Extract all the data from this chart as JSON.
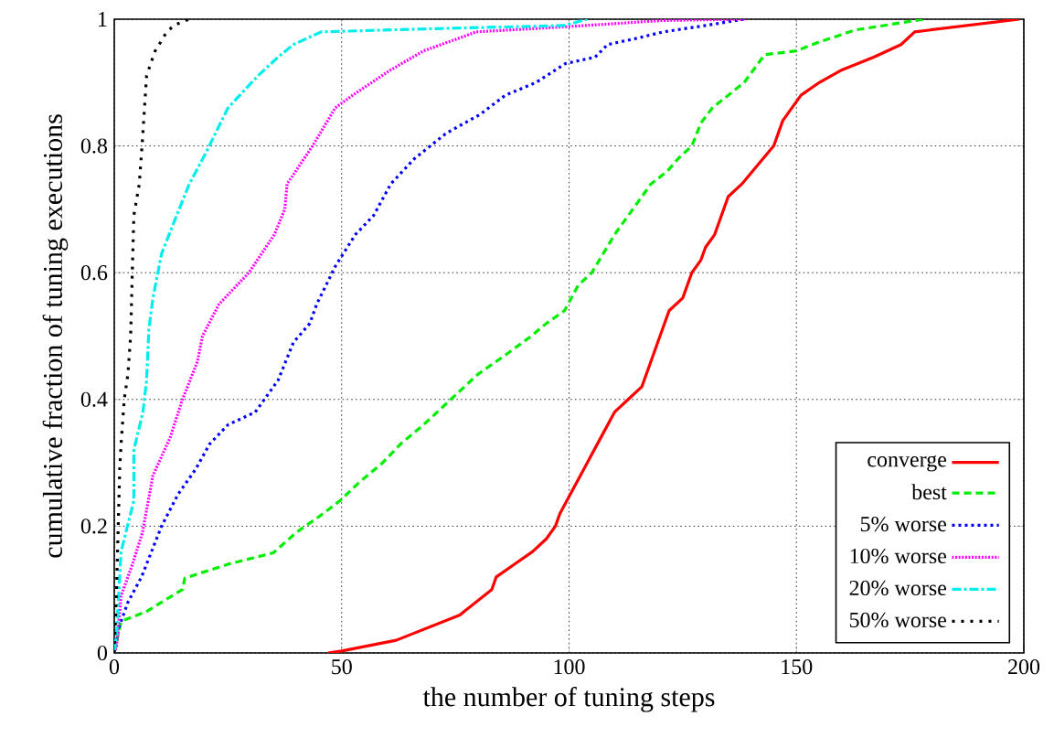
{
  "chart_data": {
    "type": "line",
    "xlabel": "the number of tuning steps",
    "ylabel": "cumulative fraction of tuning executions",
    "xlim": [
      0,
      200
    ],
    "ylim": [
      0,
      1
    ],
    "xticks": [
      0,
      50,
      100,
      150,
      200
    ],
    "yticks": [
      0,
      0.2,
      0.4,
      0.6,
      0.8,
      1
    ],
    "grid": true,
    "legend": "bottom right",
    "marker": "none",
    "series": [
      {
        "name": "converge",
        "color": "#ff0000",
        "line_style": "solid",
        "x": [
          47,
          50,
          62,
          76,
          83,
          84,
          88,
          92,
          95,
          97,
          98,
          107,
          110,
          113,
          116,
          122,
          125,
          127,
          129,
          130,
          132,
          133,
          134,
          135,
          138,
          145,
          147,
          151,
          155,
          160,
          167,
          173,
          176,
          199
        ],
        "values": [
          0,
          0.003,
          0.02,
          0.06,
          0.1,
          0.12,
          0.14,
          0.16,
          0.18,
          0.2,
          0.22,
          0.34,
          0.38,
          0.4,
          0.42,
          0.54,
          0.56,
          0.6,
          0.62,
          0.64,
          0.66,
          0.68,
          0.7,
          0.72,
          0.74,
          0.8,
          0.84,
          0.88,
          0.9,
          0.92,
          0.94,
          0.96,
          0.98,
          1.0
        ]
      },
      {
        "name": "best",
        "color": "#00ee00",
        "line_style": "dashed",
        "x": [
          0,
          1.5,
          7,
          10.4,
          15,
          15.5,
          25,
          35,
          40,
          45,
          49.6,
          54,
          59,
          63,
          68,
          74,
          80,
          86,
          91.7,
          95,
          99,
          102,
          105,
          110,
          114,
          118,
          121.6,
          124,
          127,
          129,
          131.5,
          135,
          138.5,
          143,
          150,
          155,
          163,
          178
        ],
        "values": [
          0,
          0.05,
          0.065,
          0.08,
          0.1,
          0.118,
          0.14,
          0.158,
          0.19,
          0.215,
          0.24,
          0.27,
          0.3,
          0.33,
          0.36,
          0.4,
          0.44,
          0.47,
          0.5,
          0.52,
          0.54,
          0.58,
          0.6,
          0.66,
          0.7,
          0.74,
          0.76,
          0.78,
          0.8,
          0.836,
          0.86,
          0.88,
          0.9,
          0.944,
          0.95,
          0.964,
          0.983,
          1.0
        ]
      },
      {
        "name": "5% worse",
        "color": "#0000ff",
        "line_style": "dotted",
        "x": [
          0,
          1,
          3,
          6,
          10.4,
          14,
          17.9,
          21,
          25,
          31,
          36,
          39.4,
          43,
          44.5,
          48.6,
          53,
          57,
          60.8,
          66,
          73,
          80.5,
          86,
          92.7,
          99.2,
          105.7,
          108.5,
          115,
          120.7,
          130,
          138.5
        ],
        "values": [
          0,
          0.04,
          0.08,
          0.12,
          0.2,
          0.25,
          0.29,
          0.33,
          0.36,
          0.38,
          0.43,
          0.49,
          0.52,
          0.55,
          0.61,
          0.66,
          0.69,
          0.74,
          0.78,
          0.82,
          0.85,
          0.88,
          0.9,
          0.93,
          0.94,
          0.96,
          0.97,
          0.98,
          0.99,
          1.0
        ]
      },
      {
        "name": "10% worse",
        "color": "#ff00ff",
        "line_style": "dotted",
        "x": [
          0,
          0.5,
          1.5,
          4,
          6.2,
          8.5,
          12.3,
          15,
          18.3,
          19.4,
          23,
          29.6,
          35.2,
          37.5,
          38,
          43.6,
          48.6,
          52.4,
          60.8,
          68,
          75.8,
          79.6,
          99.2,
          120.7,
          139
        ],
        "values": [
          0,
          0.01,
          0.09,
          0.14,
          0.19,
          0.28,
          0.34,
          0.4,
          0.46,
          0.5,
          0.55,
          0.6,
          0.66,
          0.7,
          0.74,
          0.8,
          0.86,
          0.88,
          0.92,
          0.95,
          0.97,
          0.98,
          0.988,
          0.998,
          1.0
        ]
      },
      {
        "name": "20% worse",
        "color": "#00eeee",
        "line_style": "dashdot",
        "x": [
          0,
          0.5,
          1.5,
          4.3,
          4.3,
          6.3,
          7.1,
          7.6,
          8.5,
          10.4,
          13.7,
          16.5,
          20.2,
          25,
          31.5,
          36,
          39.4,
          45.5,
          70,
          99,
          104
        ],
        "values": [
          0,
          0.03,
          0.16,
          0.24,
          0.32,
          0.38,
          0.43,
          0.51,
          0.56,
          0.63,
          0.69,
          0.74,
          0.79,
          0.86,
          0.91,
          0.94,
          0.96,
          0.98,
          0.985,
          0.99,
          1.0
        ]
      },
      {
        "name": "50% worse",
        "color": "#000000",
        "line_style": "dotted",
        "x": [
          0,
          0.5,
          1.2,
          1.5,
          2.2,
          3,
          3.6,
          4,
          4.3,
          5.5,
          6.2,
          7.1,
          8,
          9,
          11.3,
          13,
          16.5
        ],
        "values": [
          0,
          0.1,
          0.29,
          0.33,
          0.4,
          0.44,
          0.5,
          0.61,
          0.69,
          0.74,
          0.81,
          0.91,
          0.93,
          0.95,
          0.977,
          0.99,
          1.0
        ]
      }
    ]
  }
}
